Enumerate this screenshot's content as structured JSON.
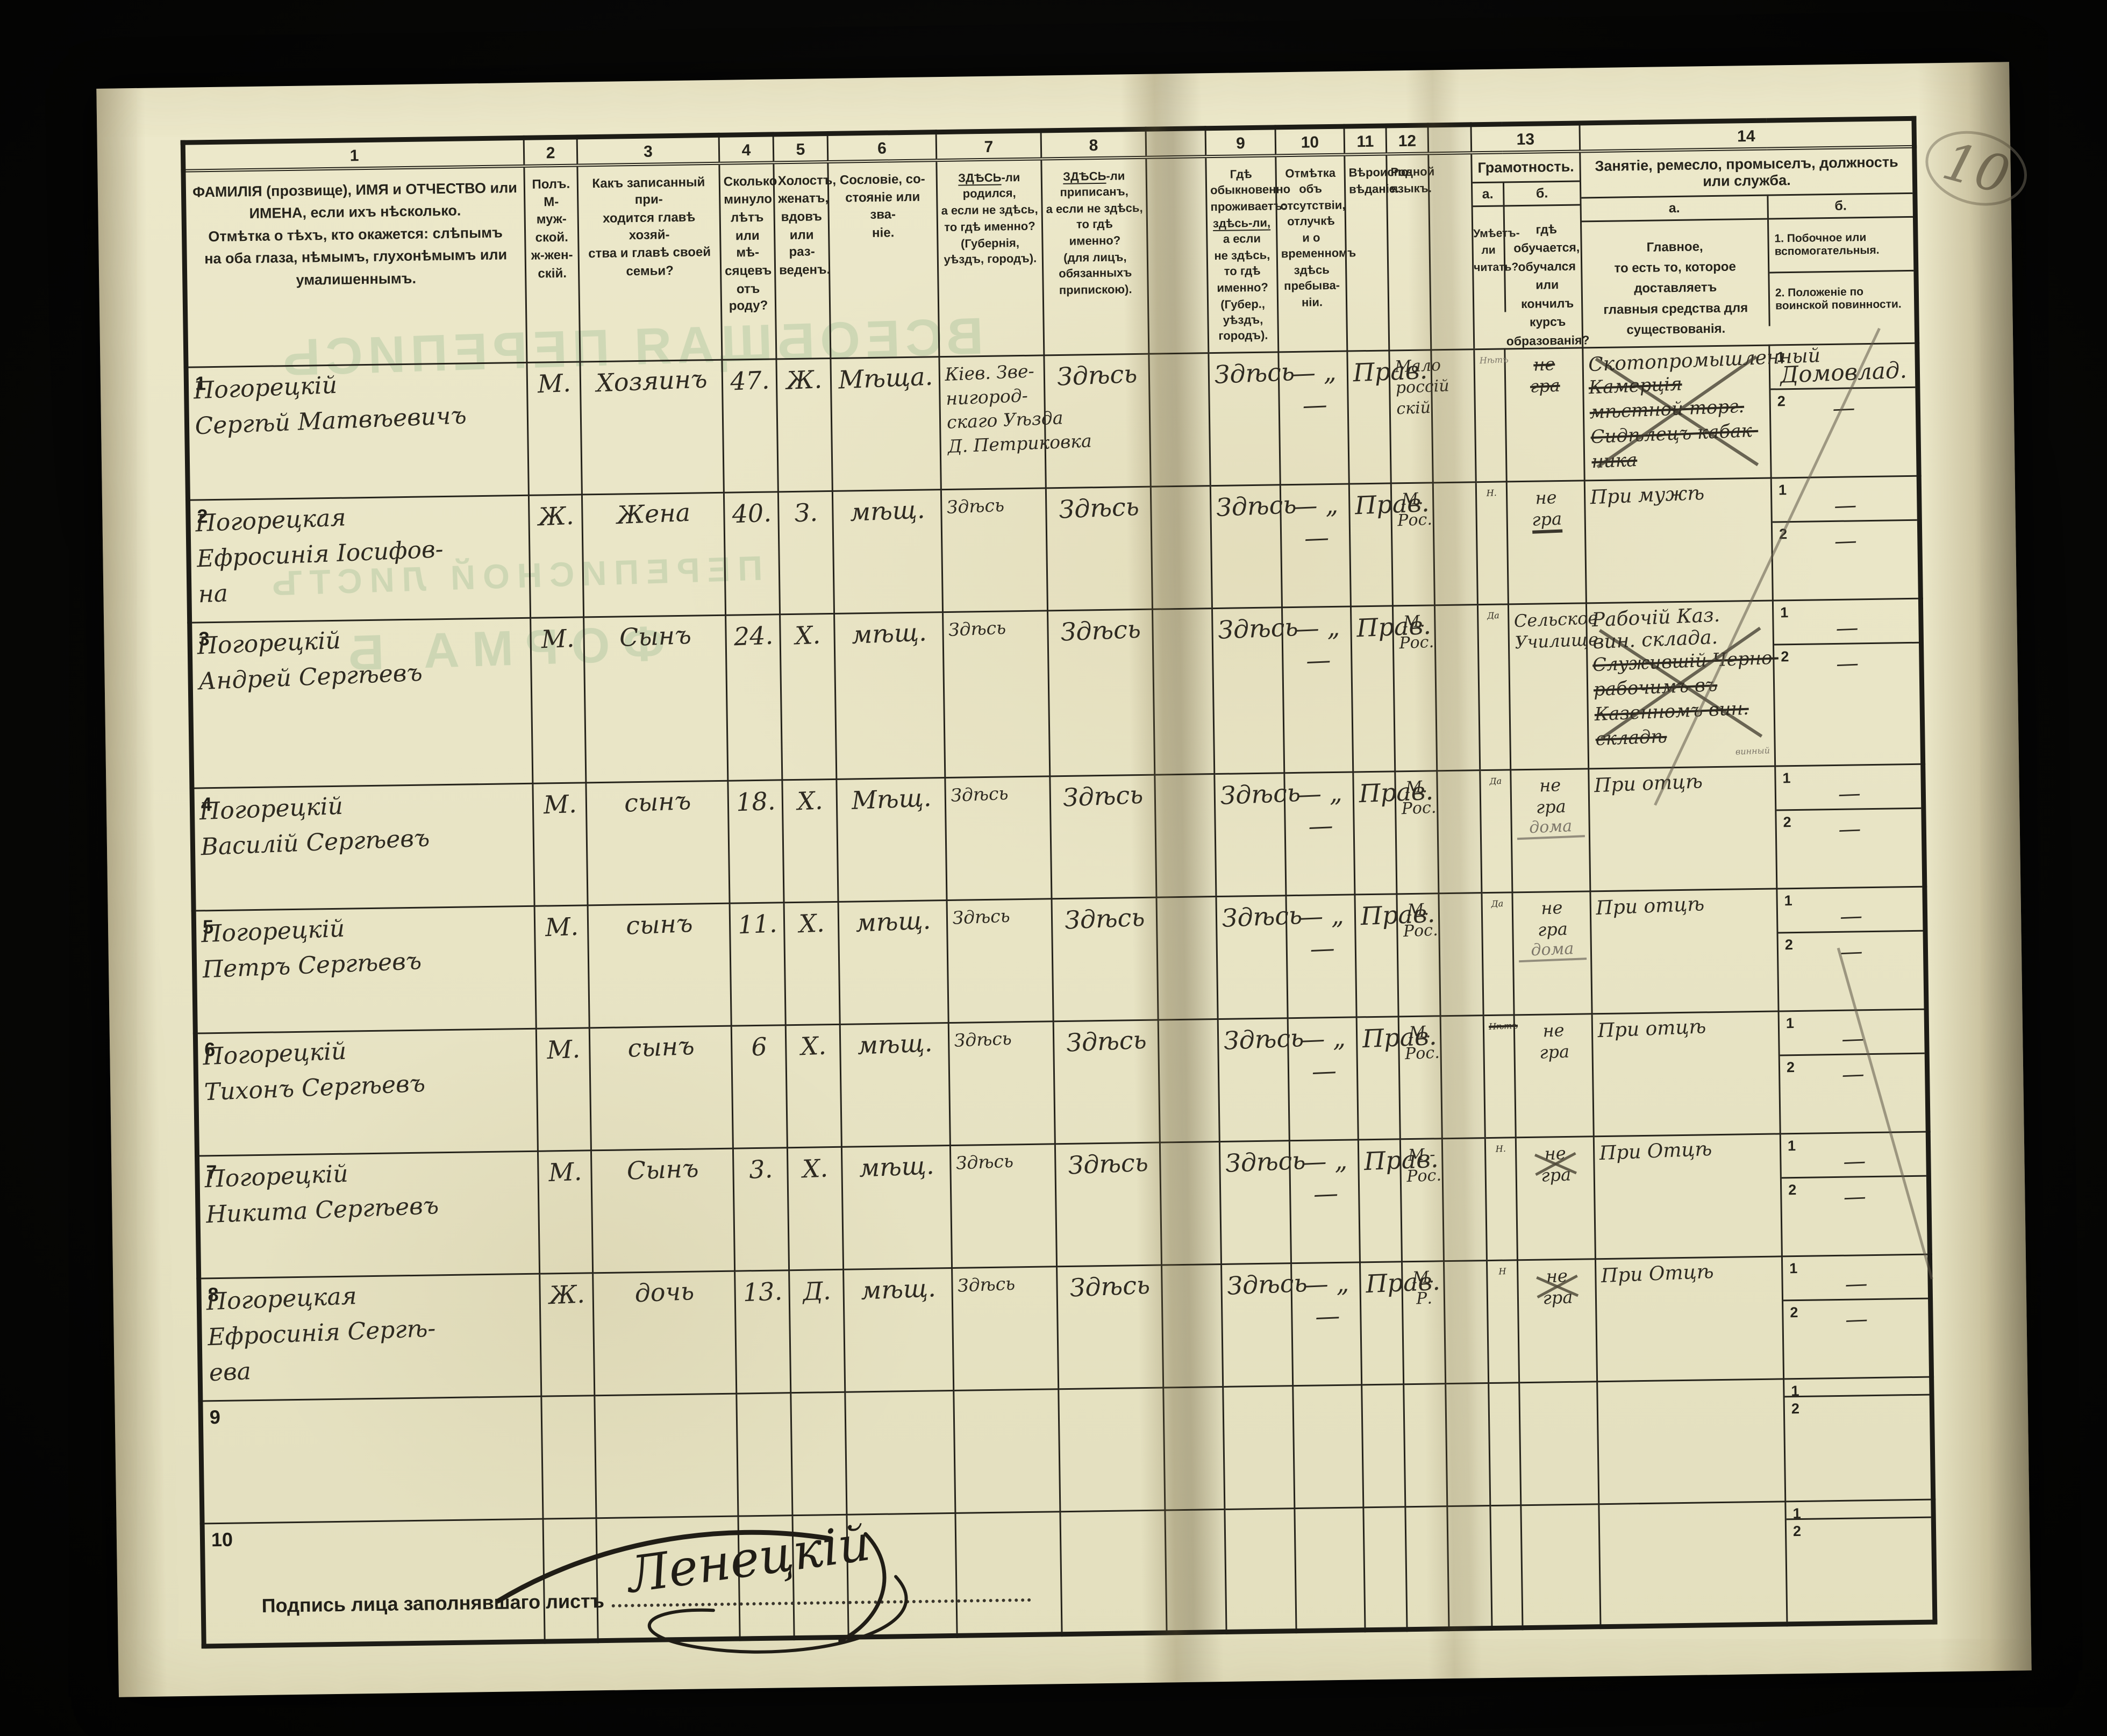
{
  "page_number": "10",
  "bleedthrough": {
    "line1": "ВСЕОБЩАЯ ПЕРЕПИСЬ",
    "line2": "ПЕРЕПИСНОЙ ЛИСТЪ",
    "line3": "ФОРМА Б"
  },
  "table": {
    "columns": [
      {
        "num": "1",
        "lines": [
          "ФАМИЛІЯ (прозвище), ИМЯ и ОТЧЕСТВО или",
          "ИМЕНА, если ихъ нѣсколько.",
          "Отмѣтка о тѣхъ, кто окажется: слѣпымъ",
          "на оба глаза, нѣмымъ, глухонѣмымъ или",
          "умалишеннымъ."
        ]
      },
      {
        "num": "2",
        "lines": [
          "Полъ.",
          "М-муж-",
          "ской.",
          "ж-жен-",
          "скій."
        ]
      },
      {
        "num": "3",
        "lines": [
          "Какъ записанный при-",
          "ходится главѣ хозяй-",
          "ства и главѣ своей",
          "семьи?"
        ]
      },
      {
        "num": "4",
        "lines": [
          "Сколько",
          "минуло",
          "лѣтъ",
          "или мѣ-",
          "сяцевъ",
          "отъ роду?"
        ]
      },
      {
        "num": "5",
        "lines": [
          "Холостъ,",
          "женатъ,",
          "вдовъ",
          "или раз-",
          "веденъ."
        ]
      },
      {
        "num": "6",
        "lines": [
          "Сословіе, со-",
          "стояніе или зва-",
          "ніе."
        ]
      },
      {
        "num": "7",
        "lines": [
          "ЗДѢСЬ-ли родился,",
          "а если не здѣсь,",
          "то гдѣ именно?",
          "(Губернія, уѣздъ, городъ)."
        ]
      },
      {
        "num": "8",
        "lines": [
          "ЗДѢСЬ-ли приписанъ,",
          "а если не здѣсь, то гдѣ",
          "именно?",
          "(для лицъ, обязанныхъ",
          "припискою)."
        ]
      },
      {
        "num": "9",
        "lines": [
          "Гдѣ обыкновенно",
          "проживаетъ:",
          "здѣсь-ли, а если",
          "не здѣсь, то гдѣ",
          "именно?",
          "(Губер., уѣздъ, городъ)."
        ]
      },
      {
        "num": "10",
        "lines": [
          "Отмѣтка объ",
          "отсутствіи, отлучкѣ",
          "и о временномъ",
          "здѣсь пребыва-",
          "ніи."
        ]
      },
      {
        "num": "11",
        "lines": [
          "Вѣроиспо-",
          "вѣданіе."
        ]
      },
      {
        "num": "12",
        "lines": [
          "Родной",
          "языкъ."
        ]
      }
    ],
    "literacy": {
      "num": "13",
      "title": "Грамотность.",
      "a_label": "а.",
      "b_label": "б.",
      "a_lines": [
        "Умѣетъ-",
        "ли",
        "читать?"
      ],
      "b_lines": [
        "гдѣ обучается,",
        "обучался или",
        "кончилъ курсъ",
        "образованія?"
      ]
    },
    "occupation": {
      "num": "14",
      "title": "Занятіе, ремесло, промыселъ, должность или служба.",
      "a_label": "а.",
      "b_label": "б.",
      "a_lines": [
        "Главное,",
        "то есть то, которое доставляетъ",
        "главныя средства для существованія."
      ],
      "b_item1": "1. Побочное или вспомогательныя.",
      "b_item2": "2. Положеніе по воинской повинности."
    }
  },
  "rows": [
    {
      "num": "1",
      "name": [
        "Погорецкій",
        "Сергѣй Матвѣевичъ"
      ],
      "sex": "М.",
      "relation": "Хозяинъ",
      "age": "47.",
      "marital": "Ж.",
      "estate": "Мѣща.",
      "born": [
        "Кіев. Зве-",
        "нигород-",
        "скаго Уѣзда",
        "Д. Петриковка"
      ],
      "registered": "Здѣсь",
      "residence": "Здѣсь",
      "absence": "— „ —",
      "religion": "Прав.",
      "language": [
        "Мало",
        "россій",
        "скій"
      ],
      "read": "Нѣтъ",
      "read_style": "pencil",
      "school": [
        "не",
        "гра"
      ],
      "school_style": "struck",
      "school_pencil": "",
      "occ_main": "Скотопромышленный",
      "occ_struck": [
        "Камерція",
        "мѣстной торг.",
        "Сидѣлецъ кабак-",
        "ника"
      ],
      "occ_pencil": "",
      "occ_cross": true,
      "side1": "Домовлад.",
      "side2": "—"
    },
    {
      "num": "2",
      "name": [
        "Погорецкая",
        "Ефросинія Іосифов-",
        "на"
      ],
      "sex": "Ж.",
      "relation": "Жена",
      "age": "40.",
      "marital": "З.",
      "estate": "мѣщ.",
      "born": [
        "Здѣсь"
      ],
      "registered": "Здѣсь",
      "residence": "Здѣсь",
      "absence": "— „ —",
      "religion": "Прав.",
      "language": [
        "М.",
        "Рос."
      ],
      "read": "Н.",
      "read_style": "",
      "school": [
        "не",
        "гра"
      ],
      "school_style": "underline",
      "school_pencil": "",
      "occ_main": "При мужѣ",
      "occ_struck": [],
      "occ_pencil": "",
      "occ_cross": false,
      "side1": "—",
      "side2": "—"
    },
    {
      "num": "3",
      "name": [
        "Погорецкій",
        "Андрей Сергѣевъ"
      ],
      "sex": "М.",
      "relation": "Сынъ",
      "age": "24.",
      "marital": "Х.",
      "estate": "мѣщ.",
      "born": [
        "Здѣсь"
      ],
      "registered": "Здѣсь",
      "residence": "Здѣсь",
      "absence": "— „ —",
      "religion": "Прав.",
      "language": [
        "М.",
        "Рос."
      ],
      "read": "Да",
      "read_style": "",
      "school": [
        "Сельское",
        "Училище"
      ],
      "school_style": "",
      "school_pencil": "",
      "occ_main": "Рабочій Каз. вин. склада.",
      "occ_struck": [
        "Служившій Черно-",
        "рабочимъ въ",
        "Казенномъ вин.",
        "складѣ"
      ],
      "occ_pencil": "винный",
      "occ_cross": true,
      "side1": "—",
      "side2": "—"
    },
    {
      "num": "4",
      "name": [
        "Погорецкій",
        "Василій Сергѣевъ"
      ],
      "sex": "М.",
      "relation": "сынъ",
      "age": "18.",
      "marital": "Х.",
      "estate": "Мѣщ.",
      "born": [
        "Здѣсь"
      ],
      "registered": "Здѣсь",
      "residence": "Здѣсь",
      "absence": "— „ —",
      "religion": "Прав.",
      "language": [
        "М.",
        "Рос."
      ],
      "read": "Да",
      "read_style": "",
      "school": [
        "не",
        "гра"
      ],
      "school_style": "",
      "school_pencil": "дома",
      "occ_main": "При отцѣ",
      "occ_struck": [],
      "occ_pencil": "",
      "occ_cross": false,
      "side1": "—",
      "side2": "—"
    },
    {
      "num": "5",
      "name": [
        "Погорецкій",
        "Петръ Сергѣевъ"
      ],
      "sex": "М.",
      "relation": "сынъ",
      "age": "11.",
      "marital": "Х.",
      "estate": "мѣщ.",
      "born": [
        "Здѣсь"
      ],
      "registered": "Здѣсь",
      "residence": "Здѣсь",
      "absence": "— „ —",
      "religion": "Прав.",
      "language": [
        "М.",
        "Рос."
      ],
      "read": "Да",
      "read_style": "",
      "school": [
        "не",
        "гра"
      ],
      "school_style": "",
      "school_pencil": "дома",
      "occ_main": "При отцѣ",
      "occ_struck": [],
      "occ_pencil": "",
      "occ_cross": false,
      "side1": "—",
      "side2": "—"
    },
    {
      "num": "6",
      "name": [
        "Погорецкій",
        "Тихонъ Сергѣевъ"
      ],
      "sex": "М.",
      "relation": "сынъ",
      "age": "6",
      "marital": "Х.",
      "estate": "мѣщ.",
      "born": [
        "Здѣсь"
      ],
      "registered": "Здѣсь",
      "residence": "Здѣсь",
      "absence": "— „ —",
      "religion": "Прав.",
      "language": [
        "М.",
        "Рос."
      ],
      "read": "Нѣтъ",
      "read_style": "struck",
      "school": [
        "не",
        "гра"
      ],
      "school_style": "",
      "school_pencil": "",
      "occ_main": "При отцѣ",
      "occ_struck": [],
      "occ_pencil": "",
      "occ_cross": false,
      "side1": "—",
      "side2": "—"
    },
    {
      "num": "7",
      "name": [
        "Погорецкій",
        "Никита Сергѣевъ"
      ],
      "sex": "М.",
      "relation": "Сынъ",
      "age": "3.",
      "marital": "Х.",
      "estate": "мѣщ.",
      "born": [
        "Здѣсь"
      ],
      "registered": "Здѣсь",
      "residence": "Здѣсь",
      "absence": "— „ —",
      "religion": "Прав.",
      "language": [
        "М.-",
        "Рос."
      ],
      "read": "Н.",
      "read_style": "",
      "school": [
        "не",
        "гра"
      ],
      "school_style": "xed",
      "school_pencil": "",
      "occ_main": "При Отцѣ",
      "occ_struck": [],
      "occ_pencil": "",
      "occ_cross": false,
      "side1": "—",
      "side2": "—"
    },
    {
      "num": "8",
      "name": [
        "Погорецкая",
        "Ефросинія Сергѣ-",
        "ева"
      ],
      "sex": "Ж.",
      "relation": "дочь",
      "age": "13.",
      "marital": "Д.",
      "estate": "мѣщ.",
      "born": [
        "Здѣсь"
      ],
      "registered": "Здѣсь",
      "residence": "Здѣсь",
      "absence": "— „ —",
      "religion": "Прав.",
      "language": [
        "М.",
        "Р."
      ],
      "read": "Н",
      "read_style": "",
      "school": [
        "не",
        "гра"
      ],
      "school_style": "xed",
      "school_pencil": "",
      "occ_main": "При Отцѣ",
      "occ_struck": [],
      "occ_pencil": "",
      "occ_cross": false,
      "side1": "—",
      "side2": "—"
    },
    {
      "num": "9",
      "name": [],
      "sex": "",
      "relation": "",
      "age": "",
      "marital": "",
      "estate": "",
      "born": [],
      "registered": "",
      "residence": "",
      "absence": "",
      "religion": "",
      "language": [],
      "read": "",
      "read_style": "",
      "school": [],
      "school_style": "",
      "school_pencil": "",
      "occ_main": "",
      "occ_struck": [],
      "occ_pencil": "",
      "occ_cross": false,
      "side1": "",
      "side2": ""
    },
    {
      "num": "10",
      "name": [],
      "sex": "",
      "relation": "",
      "age": "",
      "marital": "",
      "estate": "",
      "born": [],
      "registered": "",
      "residence": "",
      "absence": "",
      "religion": "",
      "language": [],
      "read": "",
      "read_style": "",
      "school": [],
      "school_style": "",
      "school_pencil": "",
      "occ_main": "",
      "occ_struck": [],
      "occ_pencil": "",
      "occ_cross": false,
      "side1": "",
      "side2": ""
    }
  ],
  "footer": {
    "label": "Подпись лица заполнявшаго листъ",
    "signature": "Ленецкій"
  }
}
